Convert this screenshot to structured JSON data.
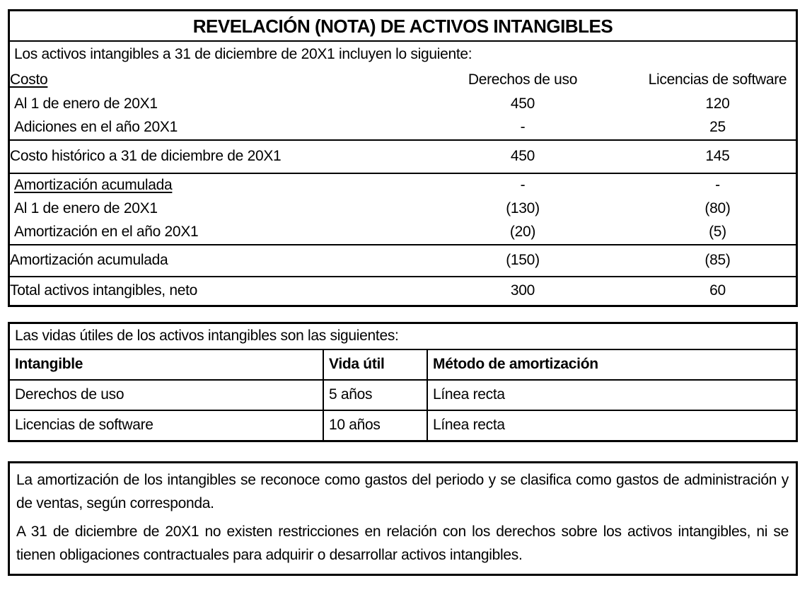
{
  "note": {
    "title": "REVELACIÓN (NOTA) DE ACTIVOS INTANGIBLES"
  },
  "cost_table": {
    "intro": "Los activos intangibles a 31 de diciembre de 20X1 incluyen lo siguiente:",
    "cost_section_label": "Costo",
    "col_headers": [
      "Derechos de uso",
      "Licencias de software"
    ],
    "rows": [
      {
        "label": "Al 1 de enero de 20X1",
        "derechos_de_uso": "450",
        "licencias_de_software": "120"
      },
      {
        "label": "Adiciones en el año 20X1",
        "derechos_de_uso": "-",
        "licencias_de_software": "25"
      },
      {
        "label": "Costo histórico a 31 de diciembre de 20X1",
        "derechos_de_uso": "450",
        "licencias_de_software": "145"
      },
      {
        "label": "Amortización acumulada",
        "derechos_de_uso": "-",
        "licencias_de_software": "-"
      },
      {
        "label": "Al 1 de enero de 20X1",
        "derechos_de_uso": "(130)",
        "licencias_de_software": "(80)"
      },
      {
        "label": "Amortización en el año 20X1",
        "derechos_de_uso": "(20)",
        "licencias_de_software": "(5)"
      },
      {
        "label": "Amortización acumulada",
        "derechos_de_uso": "(150)",
        "licencias_de_software": "(85)"
      },
      {
        "label": "Total activos intangibles, neto",
        "derechos_de_uso": "300",
        "licencias_de_software": "60"
      }
    ]
  },
  "useful_lives_table": {
    "intro": "Las vidas útiles de los activos intangibles son las siguientes:",
    "headers": [
      "Intangible",
      "Vida útil",
      "Método de amortización"
    ],
    "rows": [
      {
        "intangible": "Derechos de uso",
        "vida_util": "5 años",
        "metodo": "Línea recta"
      },
      {
        "intangible": "Licencias de software",
        "vida_util": "10 años",
        "metodo": "Línea recta"
      }
    ]
  },
  "notes": {
    "paragraphs": [
      "La amortización de los intangibles se reconoce como gastos del periodo y se clasifica como gastos de administración y de ventas, según corresponda.",
      "A 31 de diciembre de 20X1 no existen restricciones en relación con los derechos sobre los activos intangibles, ni se tienen obligaciones contractuales para adquirir o desarrollar activos intangibles."
    ]
  },
  "colors": {
    "background": "#ffffff",
    "border": "#000000",
    "text": "#000000"
  }
}
